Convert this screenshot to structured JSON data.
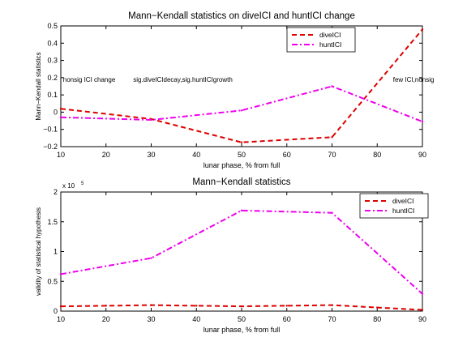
{
  "chart_data": [
    {
      "type": "line",
      "title": "Mann−Kendall statistics on diveICI and huntICI change",
      "xlabel": "lunar phase, % from full",
      "ylabel": "Mann−Kendall statistics",
      "xlim": [
        10,
        90
      ],
      "ylim": [
        -0.2,
        0.5
      ],
      "x_ticks": [
        10,
        20,
        30,
        40,
        50,
        60,
        70,
        80,
        90
      ],
      "y_ticks": [
        -0.2,
        -0.1,
        0,
        0.1,
        0.2,
        0.3,
        0.4,
        0.5
      ],
      "y_tick_labels": [
        "−0.2",
        "−0.1",
        "0",
        "0.1",
        "0.2",
        "0.3",
        "0.4",
        "0.5"
      ],
      "grid": false,
      "legend_position": "top-right",
      "series": [
        {
          "name": "diveICI",
          "color": "#dd0000",
          "style": "dashed",
          "x": [
            10,
            30,
            50,
            70,
            90
          ],
          "y": [
            0.02,
            -0.04,
            -0.175,
            -0.145,
            0.48
          ]
        },
        {
          "name": "huntICI",
          "color": "#ee00ee",
          "style": "dashdot",
          "x": [
            10,
            30,
            50,
            70,
            90
          ],
          "y": [
            -0.03,
            -0.045,
            0.01,
            0.15,
            -0.055
          ]
        }
      ],
      "annotations": [
        {
          "text": "nonsig ICI change",
          "x": 10.5,
          "y": 0.19
        },
        {
          "text": "sig.diveICIdecay,sig.huntICIgrowth",
          "x": 26,
          "y": 0.19
        },
        {
          "text": "few ICI,nonsig",
          "x": 83.5,
          "y": 0.19
        }
      ]
    },
    {
      "type": "line",
      "title": "Mann−Kendall statistics",
      "xlabel": "lunar phase, % from full",
      "ylabel": "validity of statistical hypothesis",
      "multiplier": "x 10",
      "multiplier_exp": "5",
      "xlim": [
        10,
        90
      ],
      "ylim": [
        0,
        2
      ],
      "x_ticks": [
        10,
        20,
        30,
        40,
        50,
        60,
        70,
        80,
        90
      ],
      "y_ticks": [
        0,
        0.5,
        1,
        1.5,
        2
      ],
      "y_tick_labels": [
        "0",
        "0.5",
        "1",
        "1.5",
        "2"
      ],
      "grid": false,
      "legend_position": "top-right",
      "series": [
        {
          "name": "diveICI",
          "color": "#dd0000",
          "style": "dashed",
          "x": [
            10,
            20,
            30,
            40,
            50,
            60,
            70,
            80,
            90
          ],
          "y": [
            0.08,
            0.09,
            0.1,
            0.09,
            0.08,
            0.09,
            0.1,
            0.06,
            0.02
          ]
        },
        {
          "name": "huntICI",
          "color": "#ee00ee",
          "style": "dashdot",
          "x": [
            10,
            30,
            50,
            70,
            90
          ],
          "y": [
            0.62,
            0.89,
            1.69,
            1.65,
            0.29
          ]
        }
      ]
    }
  ]
}
